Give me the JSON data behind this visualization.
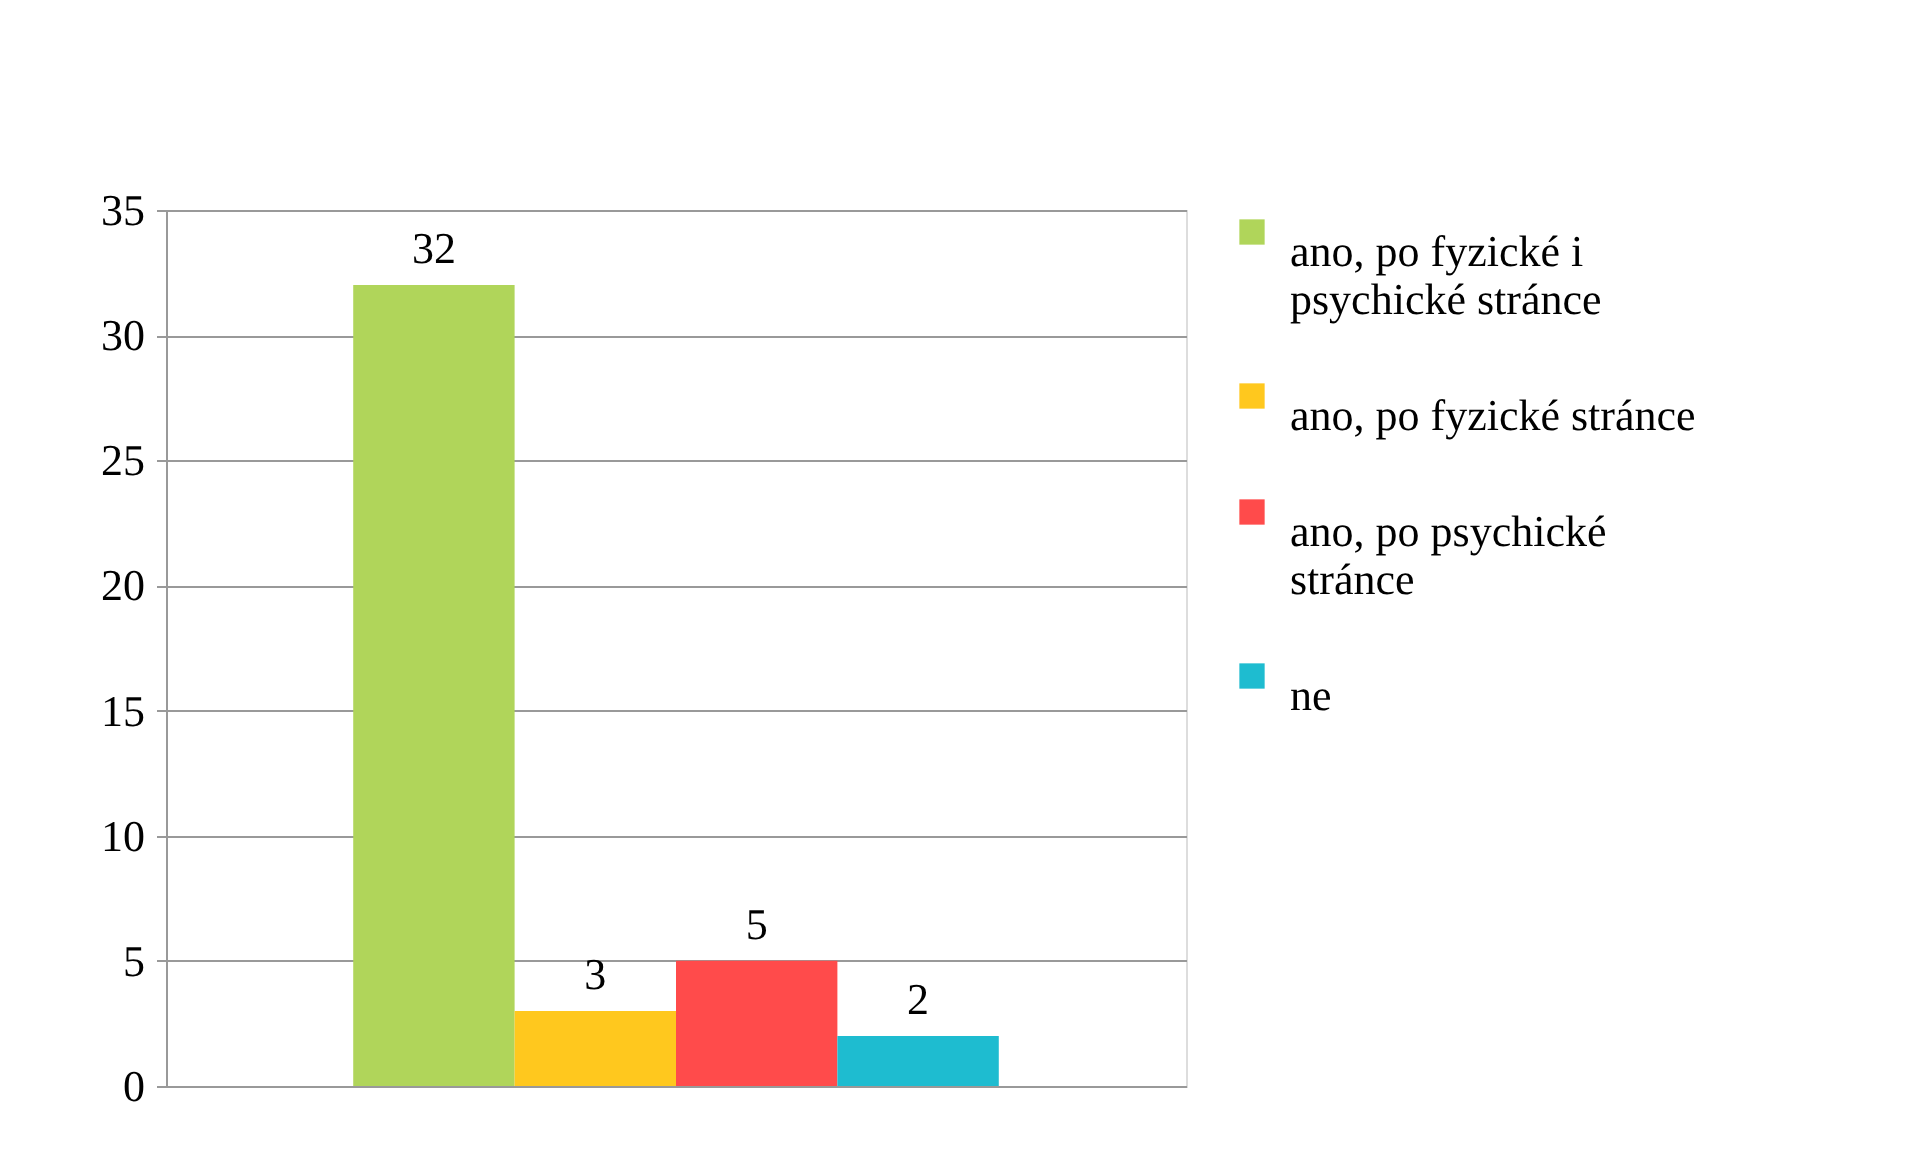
{
  "chart_data": {
    "type": "bar",
    "categories": [
      null
    ],
    "series": [
      {
        "name": "ano, po fyzické i psychické stránce",
        "color": "#b0d55a",
        "values": [
          32
        ]
      },
      {
        "name": "ano, po fyzické stránce",
        "color": "#ffc81e",
        "values": [
          3
        ]
      },
      {
        "name": "ano, po psychické stránce",
        "color": "#ff4b4b",
        "values": [
          5
        ]
      },
      {
        "name": "ne",
        "color": "#1ebcd0",
        "values": [
          2
        ]
      }
    ],
    "ylim": [
      0,
      35
    ],
    "yticks": [
      0,
      5,
      10,
      15,
      20,
      25,
      30,
      35
    ],
    "grid": "y",
    "data_labels": true,
    "legend": "right"
  }
}
